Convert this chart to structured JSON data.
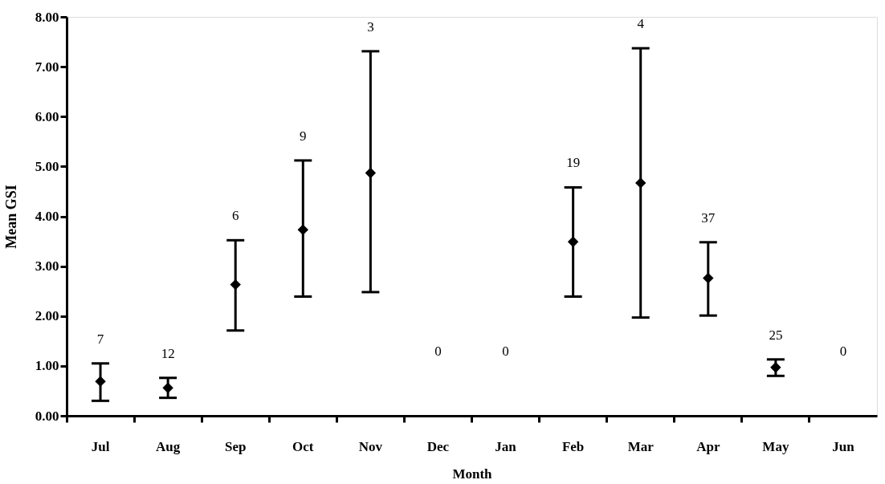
{
  "chart_data": {
    "type": "scatter",
    "xlabel": "Month",
    "ylabel": "Mean GSI",
    "categories": [
      "Jul",
      "Aug",
      "Sep",
      "Oct",
      "Nov",
      "Dec",
      "Jan",
      "Feb",
      "Mar",
      "Apr",
      "May",
      "Jun"
    ],
    "series": [
      {
        "color": "#000000",
        "values": [
          0.69,
          0.56,
          2.63,
          3.73,
          4.87,
          null,
          null,
          3.49,
          4.67,
          2.76,
          0.97,
          null
        ],
        "errors": [
          [
            0.3,
            1.05
          ],
          [
            0.36,
            0.76
          ],
          [
            1.71,
            3.52
          ],
          [
            2.39,
            5.12
          ],
          [
            2.48,
            7.31
          ],
          null,
          null,
          [
            2.39,
            4.58
          ],
          [
            1.97,
            7.37
          ],
          [
            2.01,
            3.48
          ],
          [
            0.8,
            1.13
          ],
          null
        ]
      }
    ],
    "marker": "diamond",
    "grid": false,
    "ylim": [
      0,
      8
    ],
    "yticks": [
      {
        "value": 0,
        "label": "0.00"
      },
      {
        "value": 1,
        "label": "1.00"
      },
      {
        "value": 2,
        "label": "2.00"
      },
      {
        "value": 3,
        "label": "3.00"
      },
      {
        "value": 4,
        "label": "4.00"
      },
      {
        "value": 5,
        "label": "5.00"
      },
      {
        "value": 6,
        "label": "6.00"
      },
      {
        "value": 7,
        "label": "7.00"
      },
      {
        "value": 8,
        "label": "8.00"
      }
    ],
    "annotations": [
      "7",
      "12",
      "6",
      "9",
      "3",
      "0",
      "0",
      "19",
      "4",
      "37",
      "25",
      "0"
    ]
  }
}
